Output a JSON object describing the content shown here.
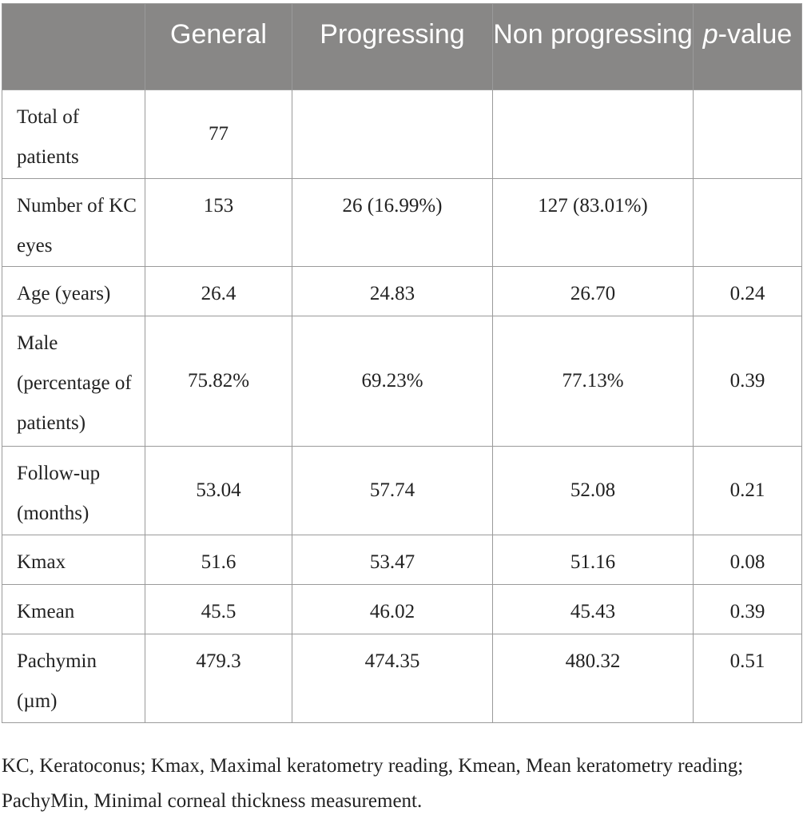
{
  "table": {
    "headers": [
      {
        "text": "",
        "suffix": ""
      },
      {
        "text": "General",
        "suffix": ""
      },
      {
        "text": "Progressing",
        "suffix": ""
      },
      {
        "text": "Non progressing",
        "suffix": ""
      },
      {
        "text": "p",
        "suffix": "-value"
      }
    ],
    "rows": [
      {
        "label": "Total of patients",
        "general": "77",
        "progressing": "",
        "non_progressing": "",
        "p_value": ""
      },
      {
        "label": "Number of KC eyes",
        "general": "153",
        "progressing": "26 (16.99%)",
        "non_progressing": "127 (83.01%)",
        "p_value": ""
      },
      {
        "label": "Age (years)",
        "general": "26.4",
        "progressing": "24.83",
        "non_progressing": "26.70",
        "p_value": "0.24"
      },
      {
        "label": "Male (percentage of patients)",
        "general": "75.82%",
        "progressing": "69.23%",
        "non_progressing": "77.13%",
        "p_value": "0.39"
      },
      {
        "label": "Follow-up (months)",
        "general": "53.04",
        "progressing": "57.74",
        "non_progressing": "52.08",
        "p_value": "0.21"
      },
      {
        "label": "Kmax",
        "general": "51.6",
        "progressing": "53.47",
        "non_progressing": "51.16",
        "p_value": "0.08"
      },
      {
        "label": "Kmean",
        "general": "45.5",
        "progressing": "46.02",
        "non_progressing": "45.43",
        "p_value": "0.39"
      },
      {
        "label": "Pachymin (µm)",
        "general": "479.3",
        "progressing": "474.35",
        "non_progressing": "480.32",
        "p_value": "0.51"
      }
    ]
  },
  "footnote": "KC, Keratoconus; Kmax, Maximal keratometry reading, Kmean, Mean keratometry reading; PachyMin, Minimal corneal thickness measurement."
}
